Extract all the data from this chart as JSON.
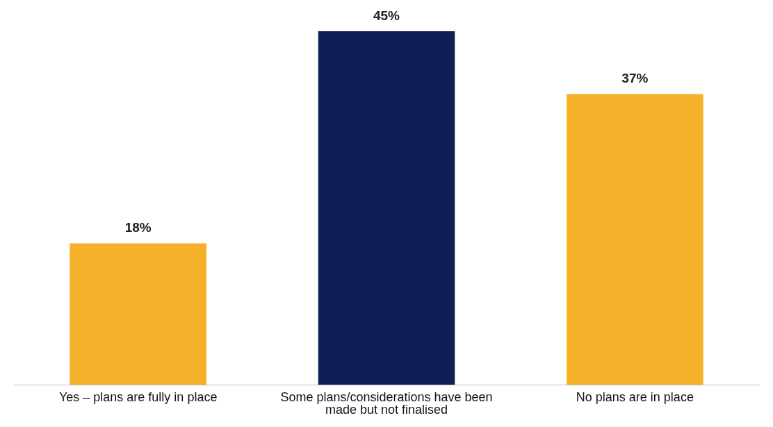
{
  "chart_data": {
    "type": "bar",
    "categories": [
      "Yes – plans are fully in place",
      "Some plans/considerations have been made but not finalised",
      "No plans are in place"
    ],
    "values": [
      18,
      45,
      37
    ],
    "colors": [
      "#f5b02a",
      "#0d1f55",
      "#f5b02a"
    ],
    "value_labels": [
      "18%",
      "45%",
      "37%"
    ],
    "grid": false,
    "legend": false,
    "tick_labels": "x"
  }
}
